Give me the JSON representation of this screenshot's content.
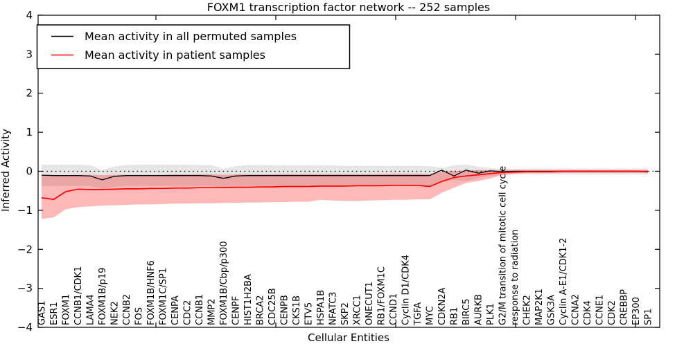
{
  "chart_data": {
    "type": "line",
    "title": "FOXM1 transcription factor network -- 252 samples",
    "xlabel": "Cellular Entities",
    "ylabel": "Inferred Activity",
    "ylim": [
      -4,
      4
    ],
    "yticks": [
      4,
      3,
      2,
      1,
      0,
      -1,
      -2,
      -3,
      -4
    ],
    "grid": false,
    "legend_position": "upper-left",
    "zero_line": {
      "value": 0,
      "style": "dotted",
      "color": "#000000"
    },
    "categories": [
      "GAS1",
      "ESR1",
      "FOXM1",
      "CCNB1/CDK1",
      "LAMA4",
      "FOXM1B/p19",
      "NEK2",
      "CCNB2",
      "FOS",
      "FOXM1B/HNF6",
      "FOXM1C/SP1",
      "CENPA",
      "CDC2",
      "CCNB1",
      "MMP2",
      "FOXM1B/Cbp/p300",
      "CENPF",
      "HIST1H2BA",
      "BRCA2",
      "CDC25B",
      "CENPB",
      "CKS1B",
      "ETV5",
      "HSPA1B",
      "NFATC3",
      "SKP2",
      "XRCC1",
      "ONECUT1",
      "RB1/FOXM1C",
      "CCND1",
      "Cyclin D1/CDK4",
      "TGFA",
      "MYC",
      "CDKN2A",
      "RB1",
      "BIRC5",
      "AURKB",
      "PLK1",
      "G2/M transition of mitotic cell cycle",
      "response to radiation",
      "CHEK2",
      "MAP2K1",
      "GSK3A",
      "Cyclin A-E1/CDK1-2",
      "CCNA2",
      "CDK4",
      "CCNE1",
      "CDK2",
      "CREBBP",
      "EP300",
      "SP1"
    ],
    "series": [
      {
        "name": "Mean activity in all permuted samples",
        "color": "#000000",
        "band_color": "rgba(0,0,0,0.10)",
        "values": [
          -0.1,
          -0.11,
          -0.11,
          -0.11,
          -0.12,
          -0.22,
          -0.13,
          -0.11,
          -0.11,
          -0.11,
          -0.11,
          -0.11,
          -0.11,
          -0.11,
          -0.12,
          -0.18,
          -0.12,
          -0.11,
          -0.11,
          -0.11,
          -0.11,
          -0.11,
          -0.11,
          -0.11,
          -0.11,
          -0.11,
          -0.11,
          -0.11,
          -0.11,
          -0.11,
          -0.11,
          -0.11,
          -0.11,
          0.03,
          -0.12,
          0.03,
          -0.05,
          0.01,
          -0.01,
          0.0,
          0.0,
          0.0,
          0.0,
          0.0,
          0.0,
          0.0,
          0.0,
          0.0,
          0.0,
          0.0,
          0.0
        ],
        "band_upper": [
          0.17,
          0.17,
          0.17,
          0.17,
          0.15,
          0.03,
          0.12,
          0.16,
          0.17,
          0.17,
          0.17,
          0.17,
          0.17,
          0.16,
          0.16,
          0.06,
          0.13,
          0.16,
          0.16,
          0.16,
          0.15,
          0.15,
          0.15,
          0.15,
          0.15,
          0.14,
          0.14,
          0.14,
          0.14,
          0.14,
          0.14,
          0.14,
          0.13,
          0.08,
          0.15,
          0.17,
          0.12,
          0.08,
          0.07,
          0.07,
          0.07,
          0.07,
          0.07,
          0.07,
          0.07,
          0.07,
          0.07,
          0.07,
          0.07,
          0.07,
          0.07
        ],
        "band_lower": [
          -0.38,
          -0.38,
          -0.38,
          -0.38,
          -0.38,
          -0.45,
          -0.4,
          -0.38,
          -0.38,
          -0.38,
          -0.38,
          -0.38,
          -0.38,
          -0.38,
          -0.38,
          -0.43,
          -0.39,
          -0.38,
          -0.38,
          -0.38,
          -0.38,
          -0.38,
          -0.37,
          -0.37,
          -0.37,
          -0.37,
          -0.37,
          -0.37,
          -0.37,
          -0.37,
          -0.37,
          -0.37,
          -0.38,
          -0.28,
          -0.22,
          -0.26,
          -0.17,
          -0.12,
          -0.09,
          -0.08,
          -0.08,
          -0.08,
          -0.08,
          -0.08,
          -0.08,
          -0.08,
          -0.08,
          -0.08,
          -0.08,
          -0.08,
          -0.08
        ]
      },
      {
        "name": "Mean activity in patient samples",
        "color": "#ff0000",
        "band_color": "rgba(255,0,0,0.28)",
        "values": [
          -0.68,
          -0.72,
          -0.52,
          -0.46,
          -0.47,
          -0.47,
          -0.46,
          -0.45,
          -0.45,
          -0.44,
          -0.44,
          -0.43,
          -0.43,
          -0.42,
          -0.42,
          -0.42,
          -0.41,
          -0.41,
          -0.4,
          -0.4,
          -0.39,
          -0.39,
          -0.39,
          -0.38,
          -0.38,
          -0.38,
          -0.37,
          -0.37,
          -0.37,
          -0.36,
          -0.36,
          -0.36,
          -0.39,
          -0.26,
          -0.16,
          -0.12,
          -0.09,
          -0.06,
          -0.03,
          -0.02,
          -0.01,
          -0.01,
          -0.01,
          0.0,
          0.0,
          0.0,
          0.0,
          0.0,
          0.0,
          0.0,
          -0.01
        ],
        "band_upper": [
          -0.1,
          -0.12,
          -0.1,
          -0.09,
          -0.09,
          -0.1,
          -0.09,
          -0.09,
          -0.09,
          -0.09,
          -0.09,
          -0.08,
          -0.08,
          -0.08,
          -0.08,
          -0.09,
          -0.08,
          -0.08,
          -0.08,
          -0.08,
          -0.07,
          -0.07,
          -0.07,
          -0.07,
          -0.07,
          -0.07,
          -0.07,
          -0.07,
          -0.07,
          -0.06,
          -0.06,
          -0.06,
          -0.07,
          -0.02,
          0.01,
          0.02,
          0.03,
          0.03,
          0.03,
          0.03,
          0.03,
          0.03,
          0.03,
          0.03,
          0.03,
          0.03,
          0.03,
          0.03,
          0.03,
          0.03,
          0.03
        ],
        "band_lower": [
          -1.22,
          -1.18,
          -0.97,
          -0.92,
          -0.9,
          -0.88,
          -0.87,
          -0.86,
          -0.85,
          -0.85,
          -0.84,
          -0.83,
          -0.83,
          -0.82,
          -0.82,
          -0.81,
          -0.81,
          -0.8,
          -0.8,
          -0.79,
          -0.79,
          -0.78,
          -0.78,
          -0.73,
          -0.75,
          -0.76,
          -0.76,
          -0.75,
          -0.74,
          -0.73,
          -0.73,
          -0.72,
          -0.72,
          -0.55,
          -0.42,
          -0.3,
          -0.25,
          -0.18,
          -0.1,
          -0.06,
          -0.05,
          -0.05,
          -0.05,
          -0.04,
          -0.04,
          -0.04,
          -0.04,
          -0.04,
          -0.04,
          -0.04,
          -0.04
        ]
      }
    ]
  }
}
